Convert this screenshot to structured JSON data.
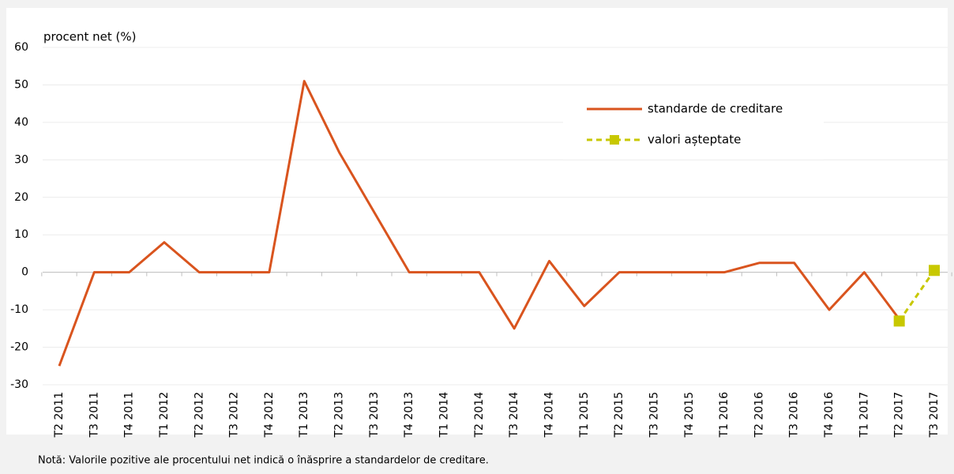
{
  "chart_data": {
    "type": "line",
    "y_label": "procent net (%)",
    "note": "Notă: Valorile pozitive ale procentului net indică o înăsprire a standardelor de creditare.",
    "categories": [
      "T2 2011",
      "T3 2011",
      "T4 2011",
      "T1 2012",
      "T2 2012",
      "T3 2012",
      "T4 2012",
      "T1 2013",
      "T2 2013",
      "T3 2013",
      "T4 2013",
      "T1 2014",
      "T2 2014",
      "T3 2014",
      "T4 2014",
      "T1 2015",
      "T2 2015",
      "T3 2015",
      "T4 2015",
      "T1 2016",
      "T2 2016",
      "T3 2016",
      "T4 2016",
      "T1 2017",
      "T2 2017",
      "T3 2017"
    ],
    "series": [
      {
        "name": "standarde de creditare",
        "color": "#d9541e",
        "style": "solid",
        "values": [
          -25,
          0,
          0,
          8,
          0,
          0,
          0,
          51,
          32,
          16,
          0,
          0,
          0,
          -15,
          3,
          -9,
          0,
          0,
          0,
          0,
          2.5,
          2.5,
          -10,
          0,
          -12.5,
          null
        ]
      },
      {
        "name": "valori așteptate",
        "color": "#c8c800",
        "style": "dashed",
        "values": [
          null,
          null,
          null,
          null,
          null,
          null,
          null,
          null,
          null,
          null,
          null,
          null,
          null,
          null,
          null,
          null,
          null,
          null,
          null,
          null,
          null,
          null,
          null,
          null,
          -13,
          0.5
        ]
      }
    ],
    "ylim": [
      -30,
      60
    ],
    "yticks": [
      -30,
      -20,
      -10,
      0,
      10,
      20,
      30,
      40,
      50,
      60
    ],
    "grid": true
  }
}
